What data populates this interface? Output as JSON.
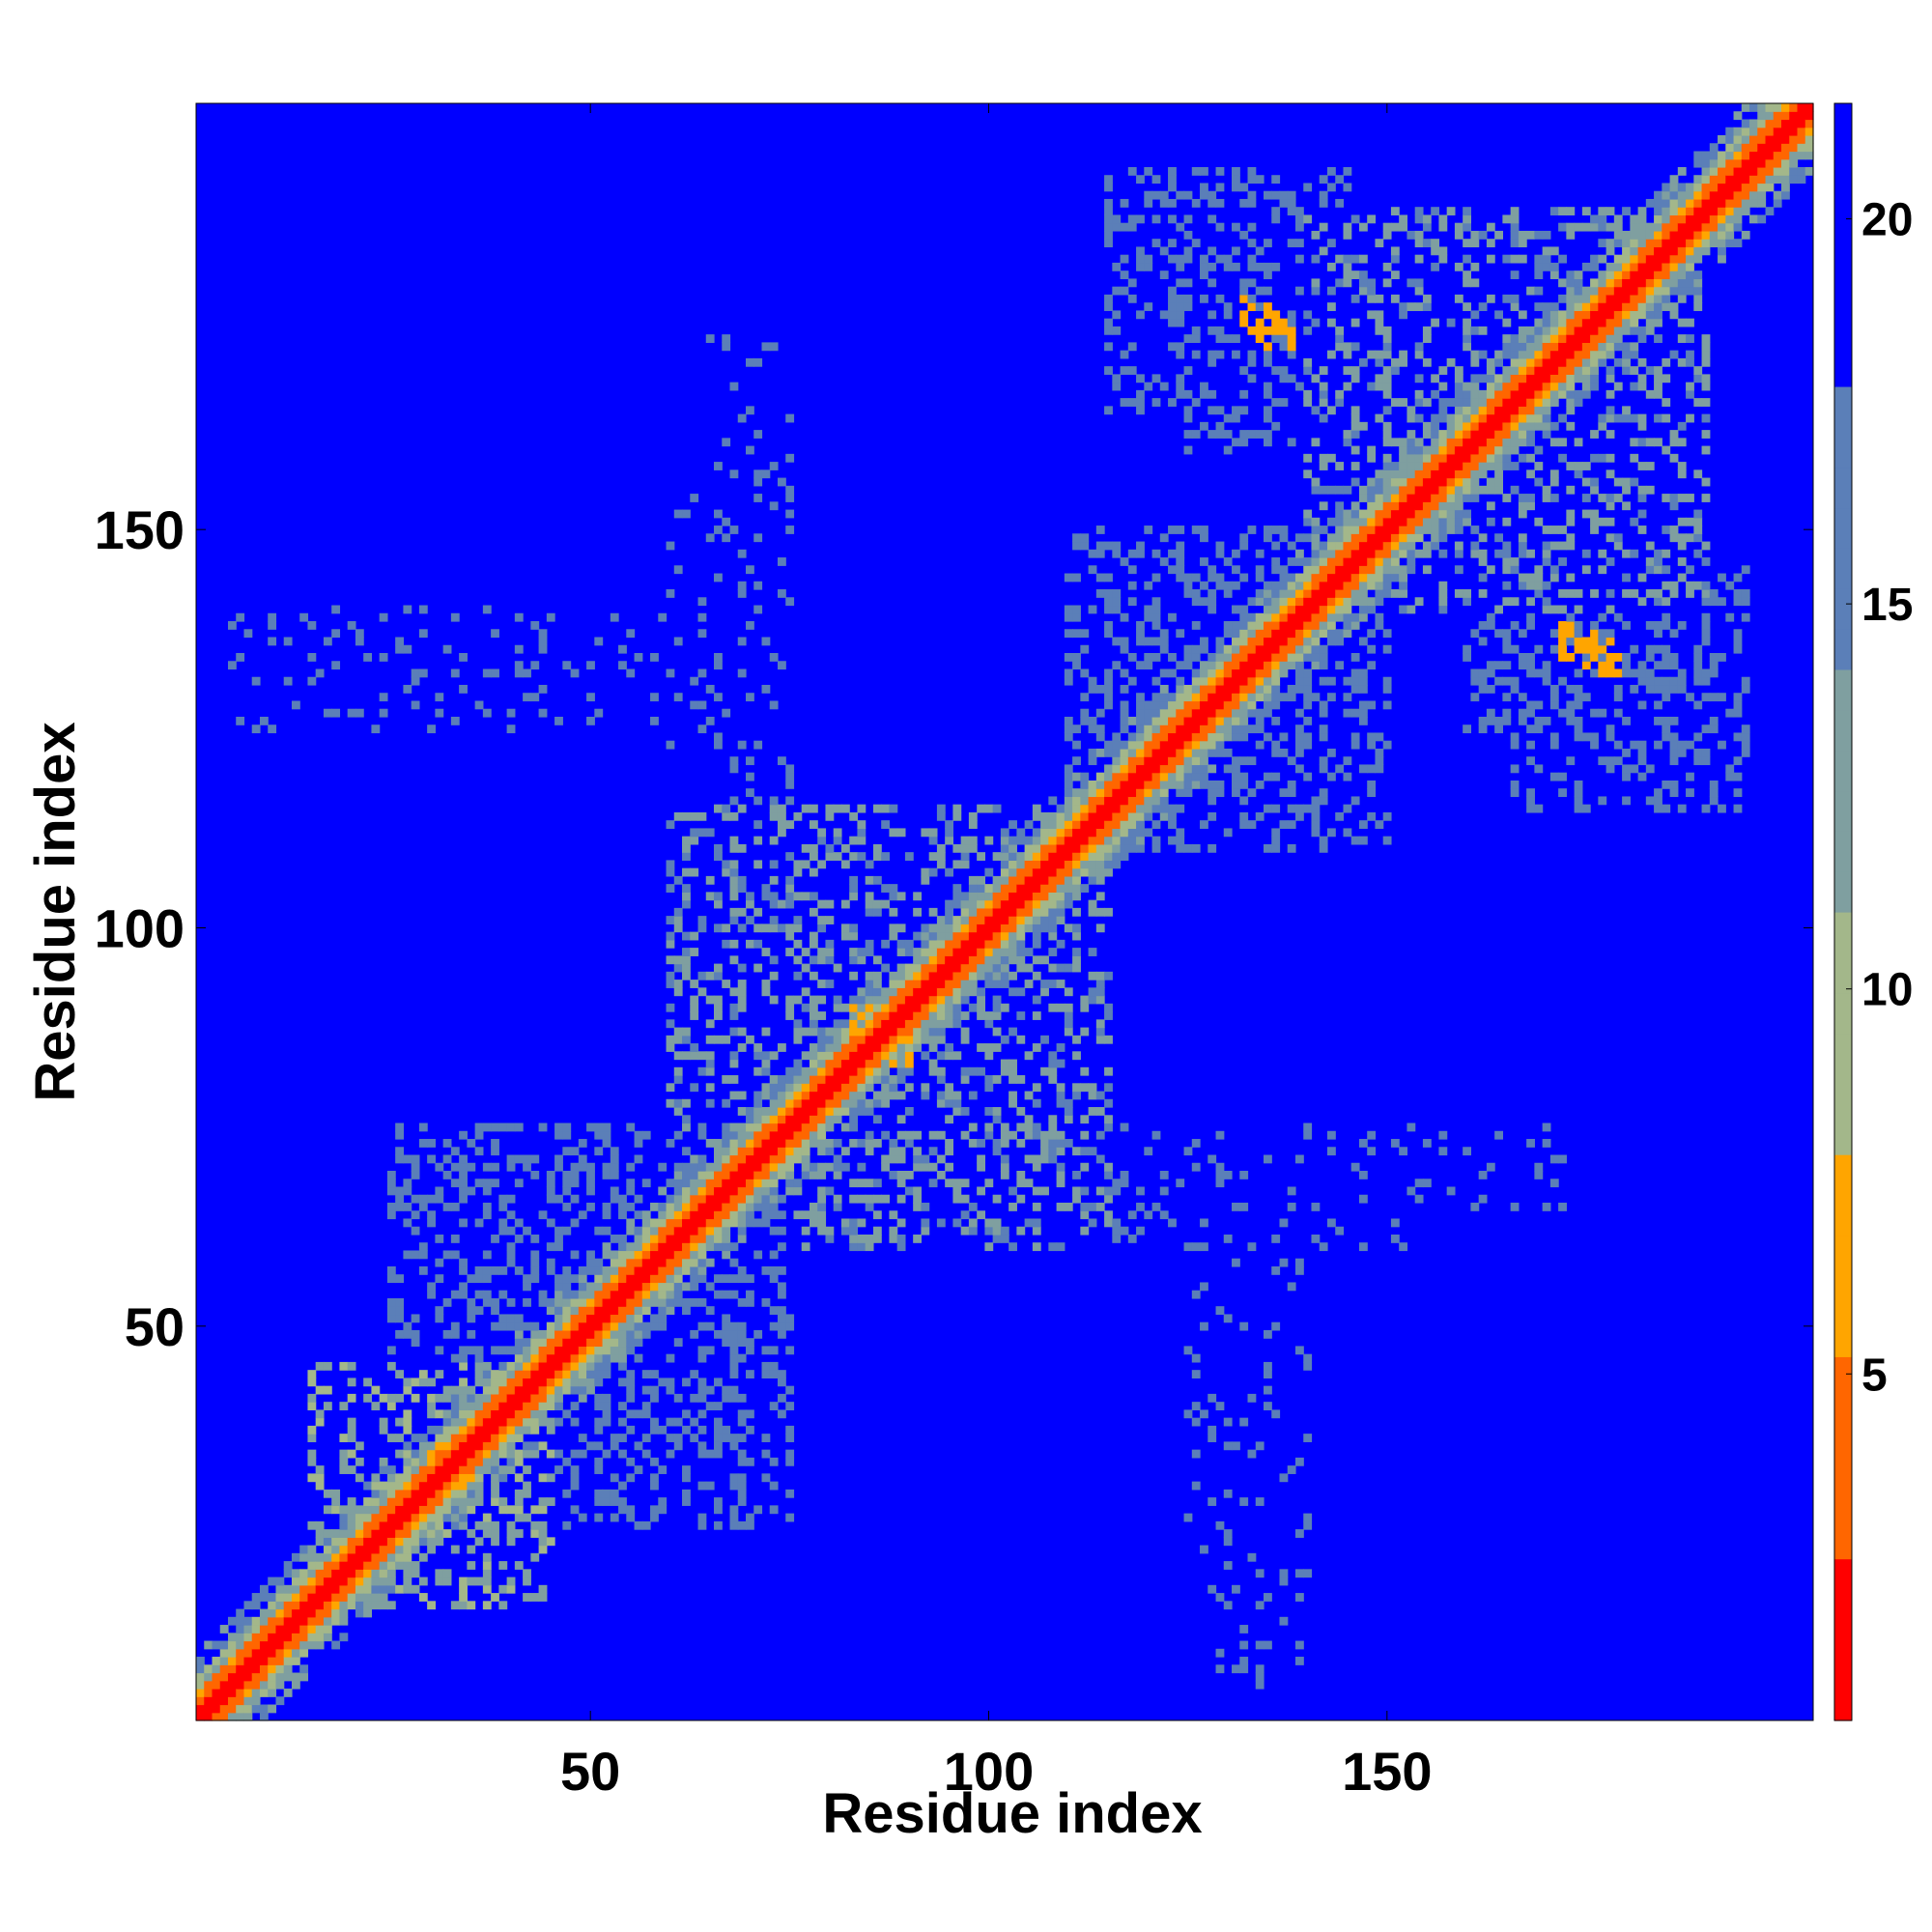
{
  "chart_data": {
    "type": "heatmap",
    "title": "",
    "xlabel": "Residue index",
    "ylabel": "Residue index",
    "xlim": [
      1,
      203
    ],
    "ylim": [
      1,
      203
    ],
    "xticks": [
      50,
      100,
      150
    ],
    "yticks": [
      50,
      100,
      150
    ],
    "colorbar": {
      "ticks": [
        5,
        10,
        15,
        20
      ],
      "range": [
        0.5,
        21.5
      ],
      "colors": {
        "close": "#ff0000",
        "near": "#ff6600",
        "mid": "#ffa500",
        "tan": "#a3b78a",
        "teal": "#7f9fa0",
        "steel": "#5b7fb8",
        "far": "#0000ff"
      }
    },
    "background_color": "#0000ff",
    "description_values": {
      "diagonal_distance": 1,
      "far_distance": 21
    },
    "contact_regions": [
      {
        "x": [
          20,
          45
        ],
        "y": [
          15,
          45
        ],
        "value": 10
      },
      {
        "x": [
          45,
          75
        ],
        "y": [
          25,
          75
        ],
        "value": 14
      },
      {
        "x": [
          75,
          115
        ],
        "y": [
          60,
          115
        ],
        "value": 12
      },
      {
        "x": [
          110,
          145
        ],
        "y": [
          110,
          150
        ],
        "value": 14
      },
      {
        "x": [
          140,
          185
        ],
        "y": [
          140,
          190
        ],
        "value": 12
      },
      {
        "x": [
          125,
          145
        ],
        "y": [
          160,
          190
        ],
        "value": 14
      },
      {
        "x": [
          165,
          195
        ],
        "y": [
          115,
          145
        ],
        "value": 15
      },
      {
        "x": [
          5,
          70
        ],
        "y": [
          125,
          140
        ],
        "value": 17
      },
      {
        "x": [
          60,
          75
        ],
        "y": [
          65,
          155
        ],
        "value": 17
      },
      {
        "x": [
          125,
          140
        ],
        "y": [
          5,
          70
        ],
        "value": 17
      },
      {
        "x": [
          100,
          175
        ],
        "y": [
          65,
          75
        ],
        "value": 17
      }
    ],
    "hotspots": [
      {
        "x": 134,
        "y": 177,
        "value": 6
      },
      {
        "x": 174,
        "y": 136,
        "value": 6
      },
      {
        "x": 85,
        "y": 88,
        "value": 6
      },
      {
        "x": 32,
        "y": 33,
        "value": 6
      }
    ]
  }
}
